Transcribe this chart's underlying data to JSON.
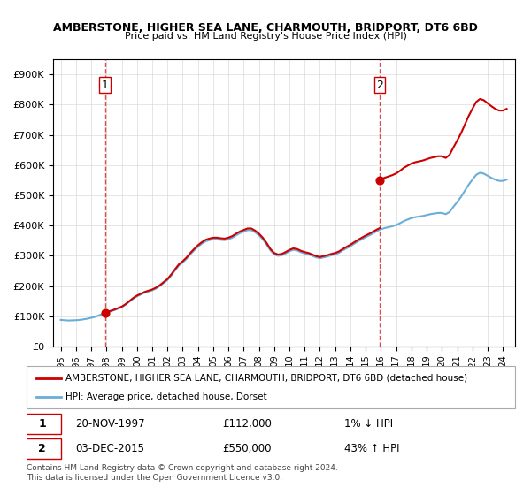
{
  "title": "AMBERSTONE, HIGHER SEA LANE, CHARMOUTH, BRIDPORT, DT6 6BD",
  "subtitle": "Price paid vs. HM Land Registry's House Price Index (HPI)",
  "ylabel": "",
  "ylim": [
    0,
    950000
  ],
  "yticks": [
    0,
    100000,
    200000,
    300000,
    400000,
    500000,
    600000,
    700000,
    800000,
    900000
  ],
  "ytick_labels": [
    "£0",
    "£100K",
    "£200K",
    "£300K",
    "£400K",
    "£500K",
    "£600K",
    "£700K",
    "£800K",
    "£900K"
  ],
  "sale1_date": 1997.9,
  "sale1_price": 112000,
  "sale1_label": "1",
  "sale2_date": 2015.92,
  "sale2_price": 550000,
  "sale2_label": "2",
  "hpi_color": "#6baed6",
  "price_color": "#cc0000",
  "sale_dot_color": "#cc0000",
  "vline_color": "#cc0000",
  "background_color": "#ffffff",
  "legend_label1": "AMBERSTONE, HIGHER SEA LANE, CHARMOUTH, BRIDPORT, DT6 6BD (detached house)",
  "legend_label2": "HPI: Average price, detached house, Dorset",
  "table_row1": [
    "1",
    "20-NOV-1997",
    "£112,000",
    "1% ↓ HPI"
  ],
  "table_row2": [
    "2",
    "03-DEC-2015",
    "£550,000",
    "43% ↑ HPI"
  ],
  "footnote": "Contains HM Land Registry data © Crown copyright and database right 2024.\nThis data is licensed under the Open Government Licence v3.0.",
  "hpi_data": {
    "years": [
      1995.0,
      1995.25,
      1995.5,
      1995.75,
      1996.0,
      1996.25,
      1996.5,
      1996.75,
      1997.0,
      1997.25,
      1997.5,
      1997.75,
      1998.0,
      1998.25,
      1998.5,
      1998.75,
      1999.0,
      1999.25,
      1999.5,
      1999.75,
      2000.0,
      2000.25,
      2000.5,
      2000.75,
      2001.0,
      2001.25,
      2001.5,
      2001.75,
      2002.0,
      2002.25,
      2002.5,
      2002.75,
      2003.0,
      2003.25,
      2003.5,
      2003.75,
      2004.0,
      2004.25,
      2004.5,
      2004.75,
      2005.0,
      2005.25,
      2005.5,
      2005.75,
      2006.0,
      2006.25,
      2006.5,
      2006.75,
      2007.0,
      2007.25,
      2007.5,
      2007.75,
      2008.0,
      2008.25,
      2008.5,
      2008.75,
      2009.0,
      2009.25,
      2009.5,
      2009.75,
      2010.0,
      2010.25,
      2010.5,
      2010.75,
      2011.0,
      2011.25,
      2011.5,
      2011.75,
      2012.0,
      2012.25,
      2012.5,
      2012.75,
      2013.0,
      2013.25,
      2013.5,
      2013.75,
      2014.0,
      2014.25,
      2014.5,
      2014.75,
      2015.0,
      2015.25,
      2015.5,
      2015.75,
      2016.0,
      2016.25,
      2016.5,
      2016.75,
      2017.0,
      2017.25,
      2017.5,
      2017.75,
      2018.0,
      2018.25,
      2018.5,
      2018.75,
      2019.0,
      2019.25,
      2019.5,
      2019.75,
      2020.0,
      2020.25,
      2020.5,
      2020.75,
      2021.0,
      2021.25,
      2021.5,
      2021.75,
      2022.0,
      2022.25,
      2022.5,
      2022.75,
      2023.0,
      2023.25,
      2023.5,
      2023.75,
      2024.0,
      2024.25
    ],
    "values": [
      88000,
      87000,
      86000,
      86500,
      87000,
      88000,
      90000,
      92000,
      95000,
      98000,
      103000,
      108000,
      112000,
      116000,
      120000,
      125000,
      130000,
      138000,
      148000,
      158000,
      166000,
      172000,
      178000,
      182000,
      186000,
      192000,
      200000,
      210000,
      220000,
      235000,
      252000,
      268000,
      278000,
      290000,
      305000,
      318000,
      330000,
      340000,
      348000,
      352000,
      355000,
      355000,
      353000,
      352000,
      355000,
      360000,
      368000,
      375000,
      380000,
      385000,
      385000,
      378000,
      368000,
      355000,
      338000,
      318000,
      305000,
      300000,
      302000,
      308000,
      315000,
      320000,
      318000,
      312000,
      308000,
      305000,
      300000,
      295000,
      292000,
      295000,
      298000,
      302000,
      305000,
      310000,
      318000,
      325000,
      332000,
      340000,
      348000,
      355000,
      362000,
      368000,
      375000,
      382000,
      388000,
      392000,
      395000,
      398000,
      402000,
      408000,
      415000,
      420000,
      425000,
      428000,
      430000,
      432000,
      435000,
      438000,
      440000,
      442000,
      442000,
      438000,
      445000,
      462000,
      478000,
      495000,
      515000,
      535000,
      552000,
      568000,
      575000,
      572000,
      565000,
      558000,
      552000,
      548000,
      548000,
      552000
    ]
  },
  "price_data": {
    "years": [
      1997.9,
      2015.92
    ],
    "values": [
      112000,
      550000
    ],
    "connected_years": [
      1997.9,
      2015.92
    ],
    "connected_values": [
      112000,
      550000
    ]
  }
}
